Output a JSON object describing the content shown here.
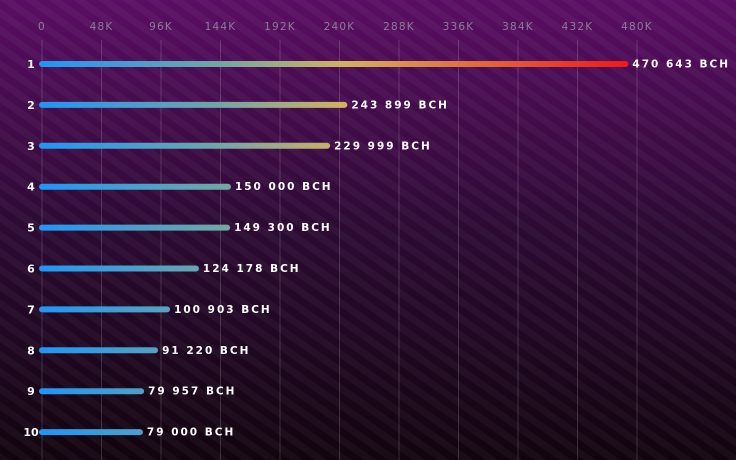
{
  "chart_data": {
    "type": "bar",
    "orientation": "horizontal",
    "categories": [
      "1",
      "2",
      "3",
      "4",
      "5",
      "6",
      "7",
      "8",
      "9",
      "10"
    ],
    "values": [
      470643,
      243899,
      229999,
      150000,
      149300,
      124178,
      100903,
      91220,
      79957,
      79000
    ],
    "value_labels": [
      "470 643 BCH",
      "243 899 BCH",
      "229 999 BCH",
      "150 000 BCH",
      "149 300 BCH",
      "124 178 BCH",
      "100 903 BCH",
      "91 220 BCH",
      "79 957 BCH",
      "79 000 BCH"
    ],
    "colors": [
      "#2196f5",
      "#6fa6a8",
      "#d2b25c",
      "#ee1a1a"
    ],
    "xlim": [
      0,
      480000
    ],
    "xticks": [
      0,
      {
        "value": 48000,
        "label": "48K"
      },
      {
        "value": 96000,
        "label": "96K"
      },
      {
        "value": 144000,
        "label": "144K"
      },
      {
        "value": 192000,
        "label": "192K"
      },
      {
        "value": 240000,
        "label": "240K"
      },
      {
        "value": 288000,
        "label": "288K"
      },
      {
        "value": 336000,
        "label": "336K"
      },
      {
        "value": 384000,
        "label": "384K"
      },
      {
        "value": 432000,
        "label": "432K"
      },
      {
        "value": 480000,
        "label": "480K"
      }
    ],
    "grid": true
  }
}
